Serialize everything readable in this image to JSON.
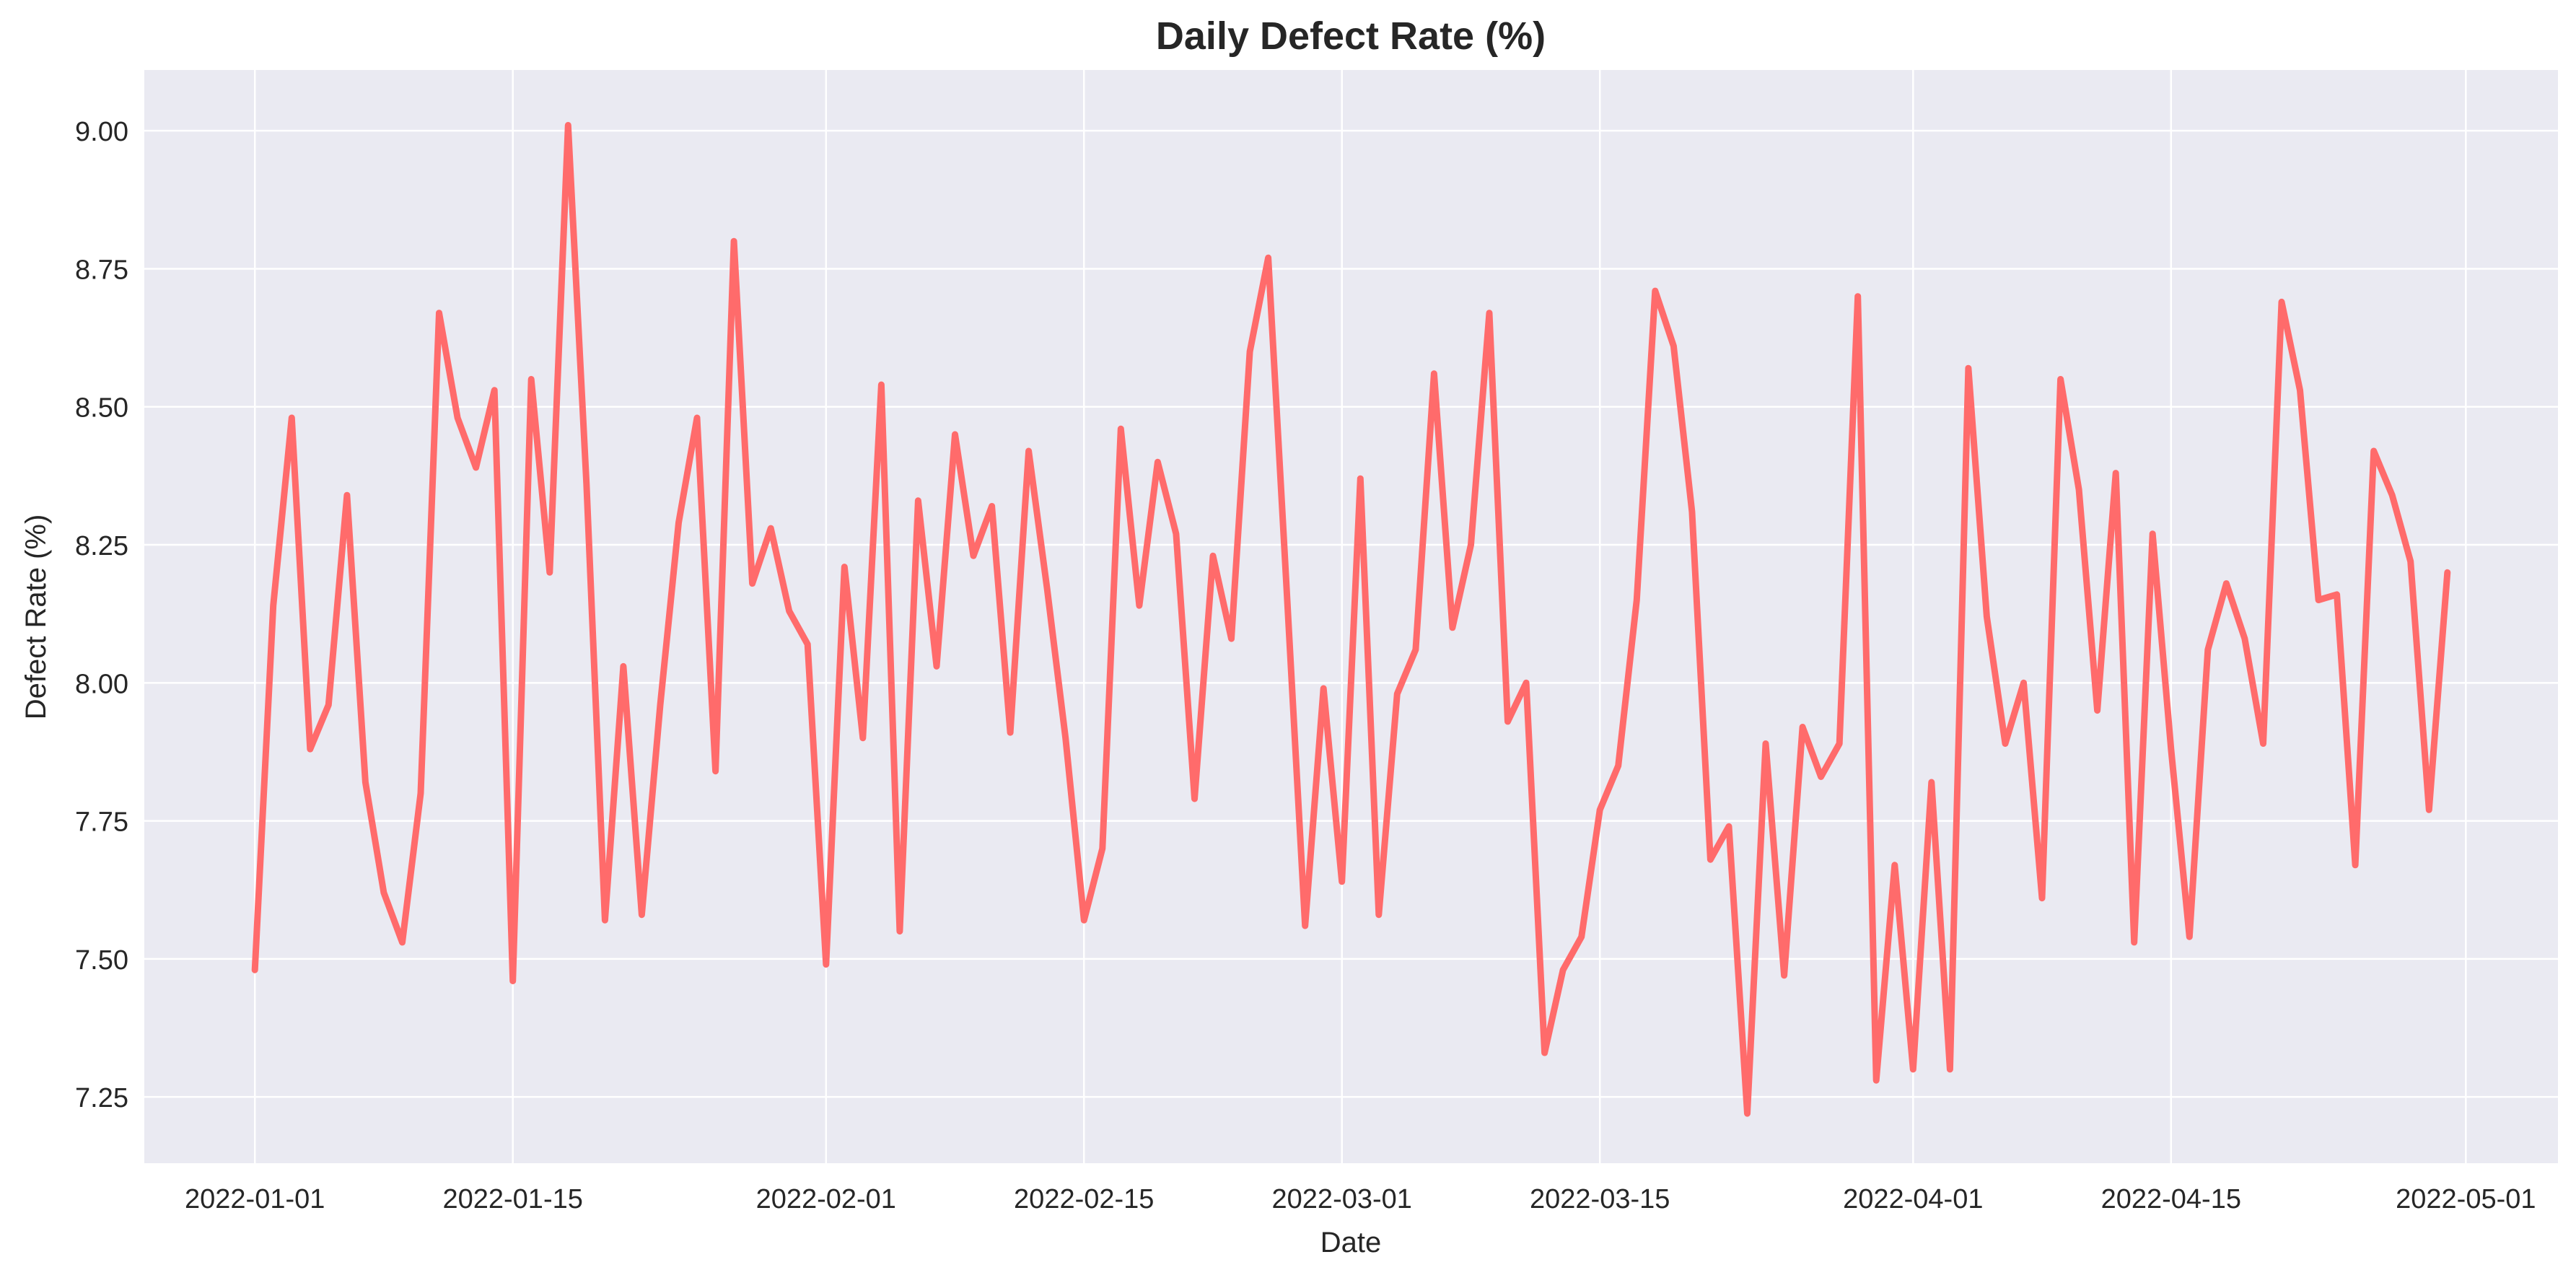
{
  "chart_data": {
    "type": "line",
    "title": "Daily Defect Rate (%)",
    "xlabel": "Date",
    "ylabel": "Defect Rate (%)",
    "x_start": "2022-01-01",
    "x_end": "2022-04-30",
    "xlim": [
      "2021-12-26",
      "2022-05-06"
    ],
    "ylim": [
      7.13,
      9.11
    ],
    "x_ticks": [
      "2022-01-01",
      "2022-01-15",
      "2022-02-01",
      "2022-02-15",
      "2022-03-01",
      "2022-03-15",
      "2022-04-01",
      "2022-04-15",
      "2022-05-01"
    ],
    "y_ticks": [
      "7.25",
      "7.50",
      "7.75",
      "8.00",
      "8.25",
      "8.50",
      "8.75",
      "9.00"
    ],
    "grid": true,
    "series": [
      {
        "name": "",
        "color": "#ff6b6b",
        "values": [
          7.48,
          8.14,
          8.48,
          7.88,
          7.96,
          8.34,
          7.82,
          7.62,
          7.53,
          7.8,
          8.67,
          8.48,
          8.39,
          8.53,
          7.46,
          8.55,
          8.2,
          9.01,
          8.36,
          7.57,
          8.03,
          7.58,
          7.96,
          8.29,
          8.48,
          7.84,
          8.8,
          8.18,
          8.28,
          8.13,
          8.07,
          7.49,
          8.21,
          7.9,
          8.54,
          7.55,
          8.33,
          8.03,
          8.45,
          8.23,
          8.32,
          7.91,
          8.42,
          8.17,
          7.9,
          7.57,
          7.7,
          8.46,
          8.14,
          8.4,
          8.27,
          7.79,
          8.23,
          8.08,
          8.6,
          8.77,
          8.17,
          7.56,
          7.99,
          7.64,
          8.37,
          7.58,
          7.98,
          8.06,
          8.56,
          8.1,
          8.25,
          8.67,
          7.93,
          8.0,
          7.33,
          7.48,
          7.54,
          7.77,
          7.85,
          8.15,
          8.71,
          8.61,
          8.31,
          7.68,
          7.74,
          7.22,
          7.89,
          7.47,
          7.92,
          7.83,
          7.89,
          8.7,
          7.28,
          7.67,
          7.3,
          7.82,
          7.3,
          8.57,
          8.12,
          7.89,
          8.0,
          7.61,
          8.55,
          8.35,
          7.95,
          8.38,
          7.53,
          8.27,
          7.88,
          7.54,
          8.06,
          8.18,
          8.08,
          7.89,
          8.69,
          8.53,
          8.15,
          8.16,
          7.67,
          8.42,
          8.34,
          8.22,
          7.77,
          8.2
        ]
      }
    ]
  }
}
